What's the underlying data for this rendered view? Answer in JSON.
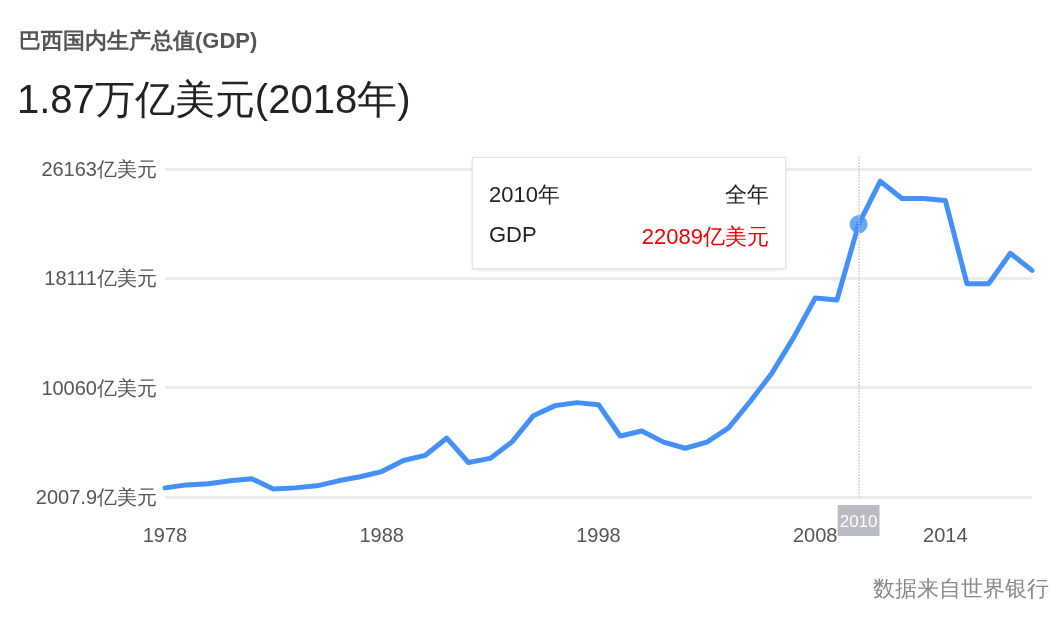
{
  "chart_data": {
    "type": "line",
    "title": "巴西国内生产总值(GDP)",
    "subtitle": "1.87万亿美元(2018年)",
    "x": [
      1978,
      1979,
      1980,
      1981,
      1982,
      1983,
      1984,
      1985,
      1986,
      1987,
      1988,
      1989,
      1990,
      1991,
      1992,
      1993,
      1994,
      1995,
      1996,
      1997,
      1998,
      1999,
      2000,
      2001,
      2002,
      2003,
      2004,
      2005,
      2006,
      2007,
      2008,
      2009,
      2010,
      2011,
      2012,
      2013,
      2014,
      2015,
      2016,
      2017,
      2018
    ],
    "series": [
      {
        "color": "#4390f8",
        "values": [
          2680,
          2900,
          2980,
          3200,
          3350,
          2600,
          2680,
          2830,
          3200,
          3500,
          3880,
          4700,
          5070,
          6350,
          4550,
          4850,
          6050,
          8000,
          8740,
          8960,
          8810,
          6500,
          6870,
          6050,
          5600,
          6050,
          7100,
          9040,
          11130,
          13750,
          16670,
          16520,
          22090,
          25270,
          24000,
          24000,
          23850,
          17720,
          17720,
          19960,
          18700
        ]
      },
      {
        "type": "scatter",
        "color": "#4390f8",
        "x": [
          2010
        ],
        "values": [
          22090
        ]
      }
    ],
    "xlim": [
      1978,
      2018
    ],
    "xticks": [
      1978,
      1988,
      1998,
      2008,
      2014
    ],
    "ylim": [
      2007.9,
      27200
    ],
    "yticks": [
      {
        "value": 2007.9,
        "label": "2007.9亿美元"
      },
      {
        "value": 10060,
        "label": "10060亿美元"
      },
      {
        "value": 18111,
        "label": "18111亿美元"
      },
      {
        "value": 26163,
        "label": "26163亿美元"
      }
    ],
    "grid": "y",
    "line_style": "solid",
    "ref_lines": [
      {
        "axis": "x",
        "value": 2010,
        "label": "2010",
        "color": "#c8c8c8",
        "line_style": "dotted"
      }
    ],
    "annotations": [
      "2010年",
      "全年",
      "GDP",
      "22089亿美元",
      "数据来自世界银行"
    ]
  }
}
